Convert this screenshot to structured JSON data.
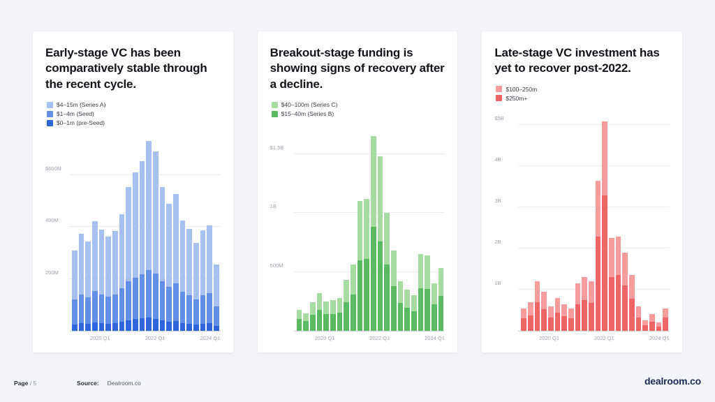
{
  "footer": {
    "page_label": "Page",
    "page_number": "/ 5",
    "source_label": "Source:",
    "source_value": "Dealroom.co",
    "brand": "dealroom.co"
  },
  "panels": [
    {
      "title": "Early-stage VC has been comparatively stable through the recent cycle."
    },
    {
      "title": "Breakout-stage funding is showing signs of recovery after a decline."
    },
    {
      "title": "Late-stage VC investment has yet to recover post-2022."
    }
  ],
  "chart_data": [
    {
      "type": "bar",
      "stacked": true,
      "title": "Early-stage VC has been comparatively stable through the recent cycle.",
      "unit": "USD millions per quarter",
      "x": [
        "2019 Q1",
        "2019 Q2",
        "2019 Q3",
        "2019 Q4",
        "2020 Q1",
        "2020 Q2",
        "2020 Q3",
        "2020 Q4",
        "2021 Q1",
        "2021 Q2",
        "2021 Q3",
        "2021 Q4",
        "2022 Q1",
        "2022 Q2",
        "2022 Q3",
        "2022 Q4",
        "2023 Q1",
        "2023 Q2",
        "2023 Q3",
        "2023 Q4",
        "2024 Q1",
        "2024 Q2"
      ],
      "x_ticks": [
        {
          "index": 4,
          "label": "2020 Q1"
        },
        {
          "index": 12,
          "label": "2022 Q1"
        },
        {
          "index": 20,
          "label": "2024 Q1"
        }
      ],
      "ymax": 760,
      "y_ticks": [
        {
          "v": 200,
          "label": "200M"
        },
        {
          "v": 400,
          "label": "400M"
        },
        {
          "v": 600,
          "label": "$600M"
        }
      ],
      "legend_position": "top-left",
      "series": [
        {
          "name": "$4–15m (Series A)",
          "color": "#a6c0ef",
          "values": [
            190,
            235,
            215,
            270,
            250,
            230,
            245,
            285,
            365,
            405,
            435,
            495,
            470,
            365,
            320,
            345,
            275,
            255,
            220,
            250,
            260,
            160
          ]
        },
        {
          "name": "$1–4m (Seed)",
          "color": "#638fe6",
          "values": [
            95,
            110,
            100,
            120,
            110,
            105,
            110,
            130,
            150,
            160,
            170,
            185,
            175,
            150,
            135,
            145,
            120,
            110,
            95,
            110,
            115,
            75
          ]
        },
        {
          "name": "$0–1m (pre-Seed)",
          "color": "#2f66db",
          "values": [
            25,
            30,
            28,
            32,
            30,
            28,
            30,
            35,
            40,
            45,
            48,
            50,
            45,
            40,
            35,
            38,
            30,
            28,
            25,
            28,
            30,
            20
          ]
        }
      ]
    },
    {
      "type": "bar",
      "stacked": true,
      "title": "Breakout-stage funding is showing signs of recovery after a decline.",
      "unit": "USD millions per quarter",
      "x": [
        "2019 Q1",
        "2019 Q2",
        "2019 Q3",
        "2019 Q4",
        "2020 Q1",
        "2020 Q2",
        "2020 Q3",
        "2020 Q4",
        "2021 Q1",
        "2021 Q2",
        "2021 Q3",
        "2021 Q4",
        "2022 Q1",
        "2022 Q2",
        "2022 Q3",
        "2022 Q4",
        "2023 Q1",
        "2023 Q2",
        "2023 Q3",
        "2023 Q4",
        "2024 Q1",
        "2024 Q2"
      ],
      "x_ticks": [
        {
          "index": 4,
          "label": "2020 Q1"
        },
        {
          "index": 12,
          "label": "2022 Q1"
        },
        {
          "index": 20,
          "label": "2024 Q1"
        }
      ],
      "ymax": 1750,
      "y_ticks": [
        {
          "v": 500,
          "label": "500M"
        },
        {
          "v": 1000,
          "label": "1B"
        },
        {
          "v": 1500,
          "label": "$1.5B"
        }
      ],
      "legend_position": "top-left",
      "series": [
        {
          "name": "$40–100m (Series C)",
          "color": "#a6dba1",
          "values": [
            80,
            65,
            105,
            140,
            110,
            115,
            125,
            190,
            250,
            500,
            510,
            770,
            720,
            440,
            300,
            185,
            155,
            135,
            290,
            285,
            175,
            235
          ]
        },
        {
          "name": "$15–40m (Series B)",
          "color": "#5bb961",
          "values": [
            100,
            85,
            135,
            180,
            140,
            145,
            155,
            240,
            310,
            600,
            610,
            880,
            760,
            560,
            380,
            235,
            195,
            165,
            360,
            355,
            225,
            295
          ]
        }
      ]
    },
    {
      "type": "bar",
      "stacked": true,
      "title": "Late-stage VC investment has yet to recover post-2022.",
      "unit": "USD millions per quarter",
      "x": [
        "2019 Q1",
        "2019 Q2",
        "2019 Q3",
        "2019 Q4",
        "2020 Q1",
        "2020 Q2",
        "2020 Q3",
        "2020 Q4",
        "2021 Q1",
        "2021 Q2",
        "2021 Q3",
        "2021 Q4",
        "2022 Q1",
        "2022 Q2",
        "2022 Q3",
        "2022 Q4",
        "2023 Q1",
        "2023 Q2",
        "2023 Q3",
        "2023 Q4",
        "2024 Q1",
        "2024 Q2"
      ],
      "x_ticks": [
        {
          "index": 4,
          "label": "2020 Q1"
        },
        {
          "index": 12,
          "label": "2022 Q1"
        },
        {
          "index": 20,
          "label": "2024 Q1"
        }
      ],
      "ymax": 5400,
      "y_ticks": [
        {
          "v": 1000,
          "label": "1B"
        },
        {
          "v": 2000,
          "label": "2B"
        },
        {
          "v": 3000,
          "label": "3B"
        },
        {
          "v": 4000,
          "label": "4B"
        },
        {
          "v": 5000,
          "label": "$5B"
        }
      ],
      "legend_position": "top-left",
      "series": [
        {
          "name": "$100–250m",
          "color": "#f69c9c",
          "values": [
            250,
            320,
            500,
            430,
            270,
            350,
            290,
            250,
            500,
            550,
            520,
            1350,
            1800,
            950,
            950,
            800,
            570,
            270,
            120,
            180,
            90,
            230
          ]
        },
        {
          "name": "$250m+",
          "color": "#ef6565",
          "values": [
            300,
            380,
            700,
            520,
            330,
            450,
            360,
            300,
            650,
            750,
            680,
            2300,
            3300,
            1300,
            1350,
            1100,
            780,
            330,
            130,
            220,
            110,
            320
          ]
        }
      ]
    }
  ]
}
